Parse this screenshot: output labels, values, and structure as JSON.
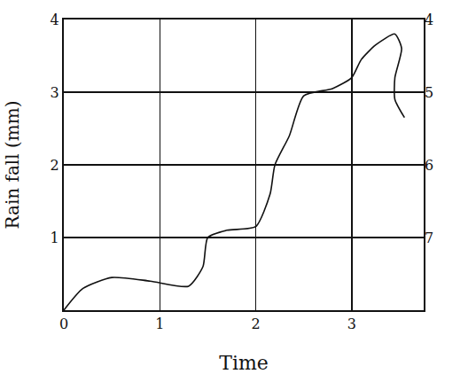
{
  "chart_data": {
    "type": "line",
    "x_label": "Time",
    "y_label": "Rain fall (mm)",
    "x": [
      0,
      0.2,
      0.5,
      0.9,
      1.3,
      1.45,
      1.5,
      1.7,
      2.0,
      2.15,
      2.2,
      2.35,
      2.5,
      2.8,
      3.0,
      3.1,
      3.25,
      3.45,
      3.52,
      3.45,
      3.45,
      3.55
    ],
    "values": [
      0,
      0.3,
      0.45,
      0.4,
      0.33,
      0.6,
      1.0,
      1.1,
      1.15,
      1.6,
      2.0,
      2.4,
      2.95,
      3.05,
      3.2,
      3.45,
      3.65,
      3.8,
      3.6,
      3.2,
      2.9,
      2.65
    ],
    "color": "#111111",
    "xlim": [
      0,
      3.75
    ],
    "xticks": [
      0,
      1,
      2,
      3
    ],
    "ylim": [
      0,
      4
    ],
    "yticks": [
      1,
      2,
      3,
      4
    ],
    "y2lim": [
      8,
      4
    ],
    "y2ticks": [
      4,
      5,
      6,
      7
    ],
    "grid": true
  }
}
